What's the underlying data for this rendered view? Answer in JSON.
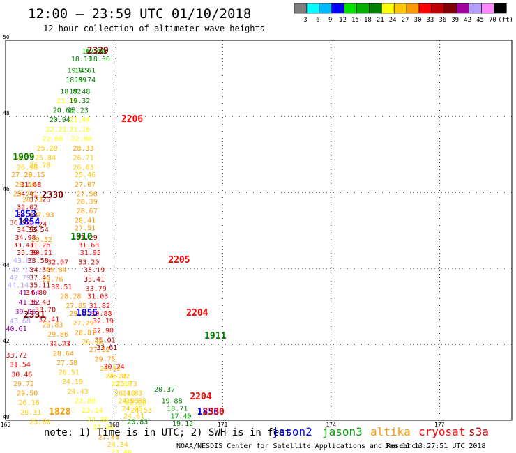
{
  "title": "12:00 – 23:59 UTC 01/10/2018",
  "subtitle": "12 hour collection of altimeter wave heights",
  "legend": {
    "unit": "(ft)",
    "bins": [
      {
        "label": "3",
        "color": "#7f7f7f"
      },
      {
        "label": "6",
        "color": "#00ffff"
      },
      {
        "label": "9",
        "color": "#00b8ff"
      },
      {
        "label": "12",
        "color": "#0000ff"
      },
      {
        "label": "15",
        "color": "#00e000"
      },
      {
        "label": "18",
        "color": "#00b000"
      },
      {
        "label": "21",
        "color": "#008000"
      },
      {
        "label": "24",
        "color": "#ffff00"
      },
      {
        "label": "27",
        "color": "#ffc800"
      },
      {
        "label": "30",
        "color": "#ff9900"
      },
      {
        "label": "33",
        "color": "#ff0000"
      },
      {
        "label": "36",
        "color": "#c00000"
      },
      {
        "label": "39",
        "color": "#800000"
      },
      {
        "label": "42",
        "color": "#a000a0"
      },
      {
        "label": "45",
        "color": "#b4a0ff"
      },
      {
        "label": "70",
        "color": "#ff88ff"
      },
      {
        "label": "",
        "color": "#000000"
      }
    ]
  },
  "note": "note: 1) Time is in UTC; 2) SWH is in feet",
  "credit": "NOAA/NESDIS Center for Satellite Applications and Research",
  "generated": "Jan 11 13:27:51 UTC 2018",
  "satellites": [
    {
      "name": "jason2",
      "color": "#0000ff"
    },
    {
      "name": "jason3",
      "color": "#00a000"
    },
    {
      "name": "altika",
      "color": "#ff9900"
    },
    {
      "name": "cryosat",
      "color": "#ff0000"
    },
    {
      "name": "s3a",
      "color": "#c00000"
    }
  ],
  "chart_data": {
    "type": "scatter",
    "xlabel": "Longitude (ticks shown as printed)",
    "ylabel": "Latitude",
    "x_ticks": [
      "165",
      "168",
      "171",
      "174",
      "177"
    ],
    "y_ticks": [
      "40",
      "42",
      "44",
      "46",
      "48",
      "50"
    ],
    "xlim": [
      165,
      179
    ],
    "ylim": [
      40,
      50
    ],
    "grid": true,
    "time_labels": [
      {
        "text": "2329",
        "lon": 167.55,
        "lat": 49.65,
        "color": "#800000"
      },
      {
        "text": "2206",
        "lon": 168.5,
        "lat": 47.85,
        "color": "#ff0000"
      },
      {
        "text": "1909",
        "lon": 165.5,
        "lat": 46.85,
        "color": "#008000"
      },
      {
        "text": "2330",
        "lon": 166.3,
        "lat": 45.85,
        "color": "#800000"
      },
      {
        "text": "1853",
        "lon": 165.55,
        "lat": 45.35,
        "color": "#0000ff"
      },
      {
        "text": "1854",
        "lon": 165.65,
        "lat": 45.15,
        "color": "#0000ff"
      },
      {
        "text": "1910",
        "lon": 167.1,
        "lat": 44.75,
        "color": "#008000"
      },
      {
        "text": "2205",
        "lon": 169.8,
        "lat": 44.15,
        "color": "#ff0000"
      },
      {
        "text": "1855",
        "lon": 167.25,
        "lat": 42.75,
        "color": "#0000ff"
      },
      {
        "text": "2204",
        "lon": 170.3,
        "lat": 42.75,
        "color": "#ff0000"
      },
      {
        "text": "2331",
        "lon": 165.8,
        "lat": 42.7,
        "color": "#800000"
      },
      {
        "text": "1911",
        "lon": 170.8,
        "lat": 42.15,
        "color": "#008000"
      },
      {
        "text": "1828",
        "lon": 166.5,
        "lat": 40.15,
        "color": "#ff9900"
      },
      {
        "text": "2204",
        "lon": 170.4,
        "lat": 40.55,
        "color": "#ff0000"
      },
      {
        "text": "1856",
        "lon": 170.6,
        "lat": 40.15,
        "color": "#0000ff"
      },
      {
        "text": "2330",
        "lon": 170.75,
        "lat": 40.15,
        "color": "#ff0000"
      }
    ],
    "tracks": [
      {
        "name": "jason3 1909-1911 track",
        "points": [
          [
            167.4,
            49.65,
            16.8
          ],
          [
            167.5,
            49.65,
            17.8
          ],
          [
            167.6,
            49.45,
            18.3
          ],
          [
            167.1,
            49.45,
            18.11
          ],
          [
            167.0,
            49.15,
            19.45
          ],
          [
            167.2,
            49.15,
            18.61
          ],
          [
            166.95,
            48.9,
            18.09
          ],
          [
            167.2,
            48.9,
            19.74
          ],
          [
            166.8,
            48.6,
            18.82
          ],
          [
            167.05,
            48.6,
            19.48
          ],
          [
            166.7,
            48.35,
            21.26
          ],
          [
            167.05,
            48.35,
            19.32
          ],
          [
            166.6,
            48.1,
            20.68
          ],
          [
            167.0,
            48.1,
            18.23
          ],
          [
            166.5,
            47.85,
            20.94
          ],
          [
            167.05,
            47.85,
            21.44
          ]
        ]
      },
      {
        "name": "altika/cryosat west track",
        "points": [
          [
            166.4,
            47.6,
            22.21
          ],
          [
            166.3,
            47.35,
            22.6
          ],
          [
            166.15,
            47.1,
            25.2
          ],
          [
            166.1,
            46.85,
            25.84
          ],
          [
            165.5,
            46.85,
            24.75
          ],
          [
            165.95,
            46.65,
            26.78
          ],
          [
            165.6,
            46.6,
            26.96
          ],
          [
            165.8,
            46.4,
            29.15
          ],
          [
            165.45,
            46.4,
            27.26
          ],
          [
            165.7,
            46.15,
            31.68
          ],
          [
            165.55,
            46.15,
            29.5
          ],
          [
            165.6,
            45.9,
            34.41
          ],
          [
            165.5,
            45.9,
            29.74
          ],
          [
            165.75,
            45.75,
            28.71
          ],
          [
            165.95,
            45.75,
            37.26
          ],
          [
            165.6,
            45.55,
            32.02
          ],
          [
            165.6,
            45.35,
            34.68
          ],
          [
            166.05,
            45.35,
            27.93
          ],
          [
            165.4,
            45.15,
            36.97
          ],
          [
            165.85,
            45.1,
            30.24
          ],
          [
            165.6,
            44.95,
            34.55
          ],
          [
            165.9,
            44.95,
            38.54
          ],
          [
            165.55,
            44.75,
            34.98
          ],
          [
            166.0,
            44.7,
            29.52
          ],
          [
            165.5,
            44.55,
            33.41
          ],
          [
            165.95,
            44.55,
            31.26
          ],
          [
            165.6,
            44.35,
            35.39
          ],
          [
            166.0,
            44.35,
            30.21
          ],
          [
            165.5,
            44.15,
            43.81
          ],
          [
            165.9,
            44.15,
            33.58
          ],
          [
            165.45,
            43.9,
            42.17
          ],
          [
            165.95,
            43.9,
            34.59
          ],
          [
            165.4,
            43.7,
            42.79
          ],
          [
            165.95,
            43.7,
            37.45
          ],
          [
            165.35,
            43.5,
            44.14
          ],
          [
            165.95,
            43.5,
            35.11
          ],
          [
            165.65,
            43.3,
            41.64
          ],
          [
            165.85,
            43.3,
            34.8
          ],
          [
            165.65,
            43.05,
            41.52
          ],
          [
            165.95,
            43.05,
            35.43
          ],
          [
            165.55,
            42.8,
            39.96
          ],
          [
            166.1,
            42.85,
            33.7
          ],
          [
            165.4,
            42.55,
            43.68
          ],
          [
            166.2,
            42.6,
            32.41
          ],
          [
            165.3,
            42.35,
            40.61
          ]
        ]
      },
      {
        "name": "cryosat/altika east track",
        "points": [
          [
            167.05,
            47.6,
            21.16
          ],
          [
            167.1,
            47.35,
            22.8
          ],
          [
            167.15,
            47.1,
            28.33
          ],
          [
            167.15,
            46.85,
            26.71
          ],
          [
            167.15,
            46.6,
            26.03
          ],
          [
            167.2,
            46.4,
            25.46
          ],
          [
            167.2,
            46.15,
            27.07
          ],
          [
            167.25,
            45.9,
            27.56
          ],
          [
            167.25,
            45.7,
            28.39
          ],
          [
            167.25,
            45.45,
            28.67
          ],
          [
            167.2,
            45.2,
            28.41
          ],
          [
            167.2,
            45.0,
            27.51
          ],
          [
            167.25,
            44.75,
            33.29
          ],
          [
            167.3,
            44.55,
            31.63
          ],
          [
            167.35,
            44.35,
            31.95
          ],
          [
            167.3,
            44.1,
            33.2
          ],
          [
            167.45,
            43.9,
            33.19
          ],
          [
            167.45,
            43.65,
            33.41
          ],
          [
            167.5,
            43.4,
            33.79
          ],
          [
            167.55,
            43.2,
            31.03
          ],
          [
            167.6,
            42.95,
            31.82
          ],
          [
            167.65,
            42.75,
            30.88
          ],
          [
            167.7,
            42.55,
            32.19
          ],
          [
            167.7,
            42.3,
            32.9
          ],
          [
            167.75,
            42.05,
            35.01
          ],
          [
            167.8,
            41.85,
            33.61
          ]
        ]
      },
      {
        "name": "altika diagonal track",
        "points": [
          [
            166.45,
            44.1,
            32.07
          ],
          [
            166.4,
            43.9,
            29.84
          ],
          [
            166.3,
            43.65,
            29.76
          ],
          [
            166.55,
            43.45,
            30.51
          ],
          [
            166.8,
            43.2,
            28.28
          ],
          [
            166.95,
            42.95,
            27.85
          ],
          [
            167.05,
            42.75,
            29.52
          ],
          [
            167.15,
            42.5,
            27.29
          ],
          [
            167.2,
            42.25,
            28.81
          ],
          [
            167.4,
            42.0,
            26.98
          ],
          [
            167.6,
            41.8,
            27.52
          ],
          [
            167.75,
            41.55,
            29.75
          ],
          [
            167.9,
            41.3,
            25.52
          ],
          [
            168.05,
            41.1,
            24.22
          ],
          [
            168.2,
            40.9,
            22.38
          ],
          [
            168.3,
            40.65,
            26.1
          ],
          [
            168.4,
            40.45,
            24.05
          ],
          [
            168.5,
            40.25,
            24.46
          ],
          [
            168.55,
            40.05,
            24.61
          ],
          [
            168.65,
            39.9,
            20.83
          ]
        ]
      },
      {
        "name": "altika southwest track",
        "points": [
          [
            166.3,
            42.45,
            29.83
          ],
          [
            166.45,
            42.2,
            29.86
          ],
          [
            166.5,
            41.95,
            31.23
          ],
          [
            166.6,
            41.7,
            28.64
          ],
          [
            166.7,
            41.45,
            27.58
          ],
          [
            166.75,
            41.2,
            26.51
          ],
          [
            166.85,
            40.95,
            24.19
          ],
          [
            167.0,
            40.7,
            24.43
          ],
          [
            167.2,
            40.45,
            23.8
          ],
          [
            167.4,
            40.2,
            23.14
          ],
          [
            167.55,
            39.95,
            22.36
          ],
          [
            167.7,
            39.75,
            22.36
          ],
          [
            167.85,
            39.5,
            27.83
          ],
          [
            168.1,
            39.3,
            24.34
          ],
          [
            168.2,
            39.1,
            23.4
          ]
        ]
      },
      {
        "name": "altika far southwest",
        "points": [
          [
            165.3,
            41.65,
            33.72
          ],
          [
            165.4,
            41.4,
            31.54
          ],
          [
            165.45,
            41.15,
            30.46
          ],
          [
            165.5,
            40.9,
            29.72
          ],
          [
            165.6,
            40.65,
            29.5
          ],
          [
            165.65,
            40.4,
            26.16
          ],
          [
            165.7,
            40.15,
            26.31
          ],
          [
            165.95,
            39.9,
            25.8
          ]
        ]
      },
      {
        "name": "jason3 1911 tail",
        "points": [
          [
            169.4,
            40.75,
            20.37
          ],
          [
            169.6,
            40.45,
            19.88
          ],
          [
            169.75,
            40.25,
            18.71
          ],
          [
            169.85,
            40.05,
            17.4
          ],
          [
            169.9,
            39.85,
            19.12
          ]
        ]
      },
      {
        "name": "altika 1911 area",
        "points": [
          [
            168.0,
            41.35,
            30.24
          ],
          [
            168.15,
            41.1,
            25.82
          ],
          [
            168.35,
            40.9,
            25.73
          ],
          [
            168.5,
            40.65,
            24.83
          ],
          [
            168.6,
            40.4,
            22.26
          ],
          [
            168.75,
            40.2,
            24.53
          ],
          [
            168.6,
            40.45,
            25.88
          ]
        ]
      }
    ]
  }
}
